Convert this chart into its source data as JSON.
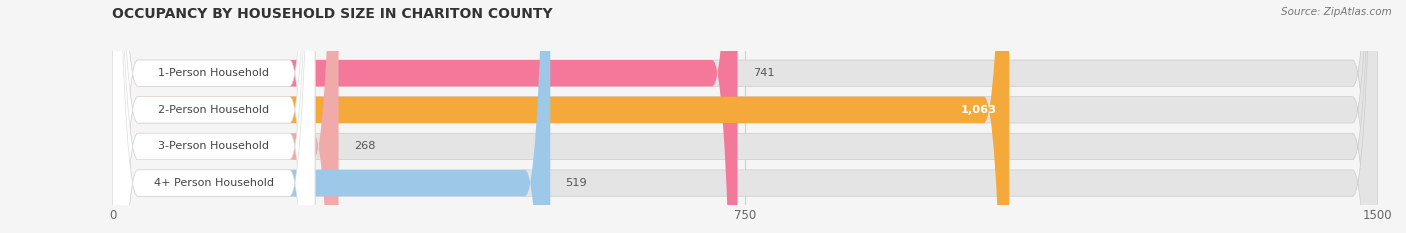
{
  "title": "OCCUPANCY BY HOUSEHOLD SIZE IN CHARITON COUNTY",
  "source": "Source: ZipAtlas.com",
  "categories": [
    "1-Person Household",
    "2-Person Household",
    "3-Person Household",
    "4+ Person Household"
  ],
  "values": [
    741,
    1063,
    268,
    519
  ],
  "bar_colors": [
    "#f4789a",
    "#f5a93a",
    "#f0aaaa",
    "#9dc8e8"
  ],
  "xlim": [
    0,
    1500
  ],
  "xticks": [
    0,
    750,
    1500
  ],
  "bg_color": "#f5f5f5",
  "track_color": "#e4e4e4",
  "label_bg_color": "#ffffff",
  "grid_color": "#d0d0d0",
  "title_color": "#333333",
  "source_color": "#777777",
  "value_color_inside": "#ffffff",
  "value_color_outside": "#555555"
}
